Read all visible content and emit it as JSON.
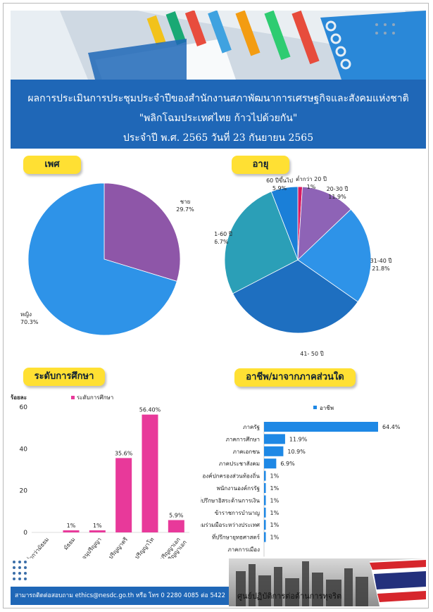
{
  "header": {
    "line1": "ผลการประเมินการประชุมประจำปีของสำนักงานสภาพัฒนาการเศรษฐกิจและสังคมแห่งชาติ",
    "line2": "\"พลิกโฉมประเทศไทย   ก้าวไปด้วยกัน\"",
    "line3": "ประจำปี  พ.ศ.  2565  วันที่  23  กันยายน  2565"
  },
  "sections": {
    "gender": "เพศ",
    "age": "อายุ",
    "education": "ระดับการศึกษา",
    "occupation": "อาชีพ/มาจากภาคส่วนใด"
  },
  "footer": {
    "contact": "สามารถติดต่อสอบถาม  ethics@nesdc.go.th  หรือ  โทร  0  2280  4085  ต่อ  5422",
    "center": "ศูนย์ปฏิบัติการต่อต้านการทุจริต"
  },
  "colors": {
    "blue": "#1f67b7",
    "yellow": "#ffe033",
    "pink": "#e8399a",
    "bar_blue": "#1e88e5"
  },
  "chart_data": [
    {
      "type": "pie",
      "labels": [
        "ชาย",
        "หญิง"
      ],
      "values": [
        29.7,
        70.3
      ],
      "value_labels": [
        "29.7%",
        "70.3%"
      ],
      "colors": [
        "#8e56a8",
        "#2e93e8"
      ]
    },
    {
      "type": "pie",
      "labels": [
        "ต่ำกว่า 20 ปี",
        "20-30 ปี",
        "31-40 ปี",
        "41- 50 ปี",
        "51-60 ปี",
        "60 ปีขึ้นไป"
      ],
      "values": [
        1,
        11.9,
        21.8,
        32.7,
        26.7,
        5.9
      ],
      "value_labels": [
        "1%",
        "11.9%",
        "21.8%",
        "32.7%",
        "26.7%",
        "5.9%"
      ],
      "colors": [
        "#d81b60",
        "#8e63b6",
        "#2e93e8",
        "#1e6fc0",
        "#2b9fb7",
        "#1a7fd8"
      ]
    },
    {
      "type": "bar",
      "legend": "ระดับการศึกษา",
      "ylabel": "ร้อยละ",
      "ylim": [
        0,
        60
      ],
      "yticks": [
        0,
        20,
        40,
        60
      ],
      "categories": [
        "ต่ำกว่ามัธยม",
        "มัธยม",
        "อนุปริญญา",
        "ปริญญาตรี",
        "ปริญญาโท",
        "ปริญญาเอก สูงกว่าปริญญาเอก"
      ],
      "values": [
        0,
        1,
        1,
        35.6,
        56.4,
        5.9
      ],
      "value_labels": [
        "",
        "1%",
        "1%",
        "35.6%",
        "56.40%",
        "5.9%"
      ],
      "color": "#e8399a"
    },
    {
      "type": "bar",
      "orientation": "horizontal",
      "legend": "อาชีพ",
      "categories": [
        "ภาครัฐ",
        "ภาคการศึกษา",
        "ภาคเอกชน",
        "ภาคประชาสังคม",
        "องค์ปกครองส่วนท้องถิ่น",
        "พนักงานองค์กรรัฐ",
        "ที่ปรึกษาอิสระด้านการเงิน",
        "ข้าราชการบำนาญ",
        "ภาคความร่วมมือระหว่างประเทศ",
        "ที่ปรึกษายุทธศาสตร์",
        "ภาคการเมือง"
      ],
      "values": [
        64.4,
        11.9,
        10.9,
        6.9,
        1,
        1,
        1,
        1,
        1,
        1,
        0
      ],
      "value_labels": [
        "64.4%",
        "11.9%",
        "10.9%",
        "6.9%",
        "1%",
        "1%",
        "1%",
        "1%",
        "1%",
        "1%",
        ""
      ],
      "color": "#1e88e5"
    }
  ]
}
